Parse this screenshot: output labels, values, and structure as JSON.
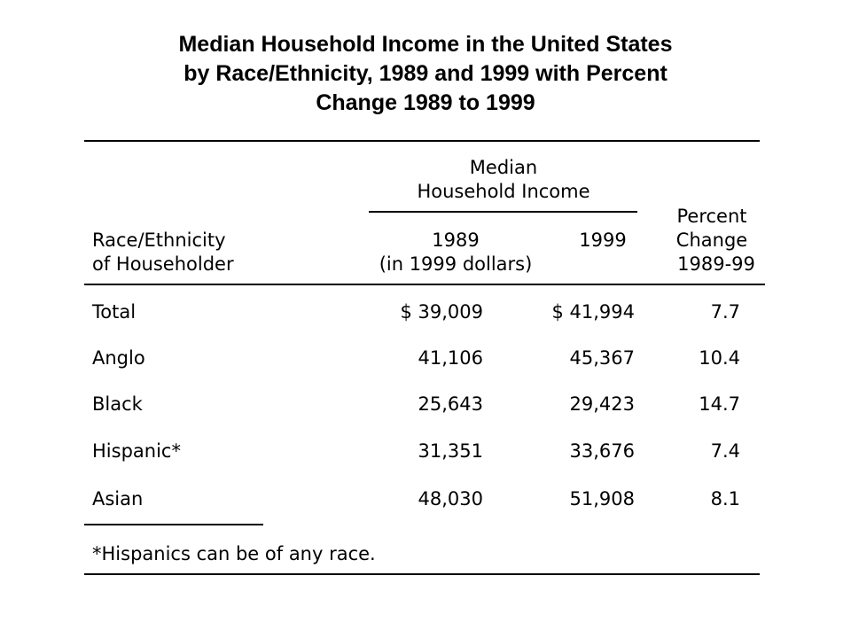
{
  "title": {
    "line1": "Median Household Income in the United States",
    "line2": "by Race/Ethnicity, 1989 and 1999 with Percent",
    "line3": "Change 1989 to 1999"
  },
  "table": {
    "group_header": {
      "line1": "Median",
      "line2": "Household Income"
    },
    "columns": {
      "label_line1": "Race/Ethnicity",
      "label_line2": "of Householder",
      "y1989_line1": "1989",
      "y1989_line2": "(in 1999 dollars)",
      "y1999": "1999",
      "pct_line1": "Percent",
      "pct_line2": "Change",
      "pct_line3": "1989-99"
    },
    "rows": [
      {
        "label": "Total",
        "v1989": "$ 39,009",
        "v1999": "$ 41,994",
        "pct": "7.7"
      },
      {
        "label": "Anglo",
        "v1989": "41,106",
        "v1999": "45,367",
        "pct": "10.4"
      },
      {
        "label": "Black",
        "v1989": "25,643",
        "v1999": "29,423",
        "pct": "14.7"
      },
      {
        "label": "Hispanic*",
        "v1989": "31,351",
        "v1999": "33,676",
        "pct": "7.4"
      },
      {
        "label": "Asian",
        "v1989": "48,030",
        "v1999": "51,908",
        "pct": "8.1"
      }
    ],
    "footnote": "*Hispanics can be of any race."
  }
}
